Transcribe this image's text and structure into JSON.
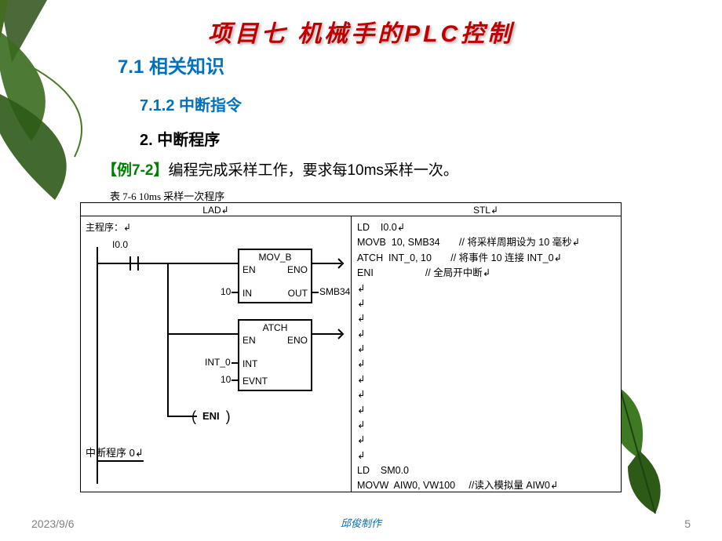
{
  "colors": {
    "title": "#c00000",
    "heading": "#0070c0",
    "example_tag": "#008000",
    "body": "#000000",
    "footer_gray": "#808080",
    "line": "#000000",
    "background": "#ffffff"
  },
  "fonts": {
    "title_size": 30,
    "h1_size": 24,
    "h2_size": 20,
    "body_size": 19,
    "caption_size": 13,
    "diagram_size": 12
  },
  "title": "项目七  机械手的PLC控制",
  "section_71": "7.1  相关知识",
  "section_712": "7.1.2  中断指令",
  "section_2": "2. 中断程序",
  "example_tag": "【例7-2】",
  "example_text": "编程完成采样工作，要求每10ms采样一次。",
  "table_caption": "表 7-6  10ms 采样一次程序",
  "diagram": {
    "headers": {
      "lad": "LAD↲",
      "stl": "STL↲"
    },
    "lad": {
      "main_label": "主程序：↲",
      "contact": "I0.0",
      "mov_b": {
        "title": "MOV_B",
        "en": "EN",
        "eno": "ENO",
        "in": "IN",
        "out": "OUT",
        "in_val": "10",
        "out_val": "SMB34"
      },
      "atch": {
        "title": "ATCH",
        "en": "EN",
        "eno": "ENO",
        "int": "INT",
        "evnt": "EVNT",
        "int_val": "INT_0",
        "evnt_val": "10"
      },
      "eni": "ENI",
      "int_label": "中断程序 0↲"
    },
    "stl_rows": [
      {
        "op": "LD",
        "args": "I0.0↲",
        "comment": ""
      },
      {
        "op": "MOVB",
        "args": "10, SMB34",
        "comment": "// 将采样周期设为 10 毫秒↲"
      },
      {
        "op": "ATCH",
        "args": "INT_0, 10",
        "comment": "// 将事件 10 连接 INT_0↲"
      },
      {
        "op": "ENI",
        "args": "",
        "comment": "// 全局开中断↲"
      },
      {
        "op": "↲",
        "args": "",
        "comment": ""
      },
      {
        "op": "↲",
        "args": "",
        "comment": ""
      },
      {
        "op": "↲",
        "args": "",
        "comment": ""
      },
      {
        "op": "↲",
        "args": "",
        "comment": ""
      },
      {
        "op": "↲",
        "args": "",
        "comment": ""
      },
      {
        "op": "↲",
        "args": "",
        "comment": ""
      },
      {
        "op": "↲",
        "args": "",
        "comment": ""
      },
      {
        "op": "↲",
        "args": "",
        "comment": ""
      },
      {
        "op": "↲",
        "args": "",
        "comment": ""
      },
      {
        "op": "↲",
        "args": "",
        "comment": ""
      },
      {
        "op": "↲",
        "args": "",
        "comment": ""
      },
      {
        "op": "↲",
        "args": "",
        "comment": ""
      },
      {
        "op": "LD",
        "args": "SM0.0",
        "comment": ""
      },
      {
        "op": "MOVW",
        "args": "AIW0, VW100",
        "comment": "//读入模拟量 AIW0↲"
      }
    ]
  },
  "footer": {
    "date": "2023/9/6",
    "author": "邱俊制作",
    "page": "5"
  }
}
